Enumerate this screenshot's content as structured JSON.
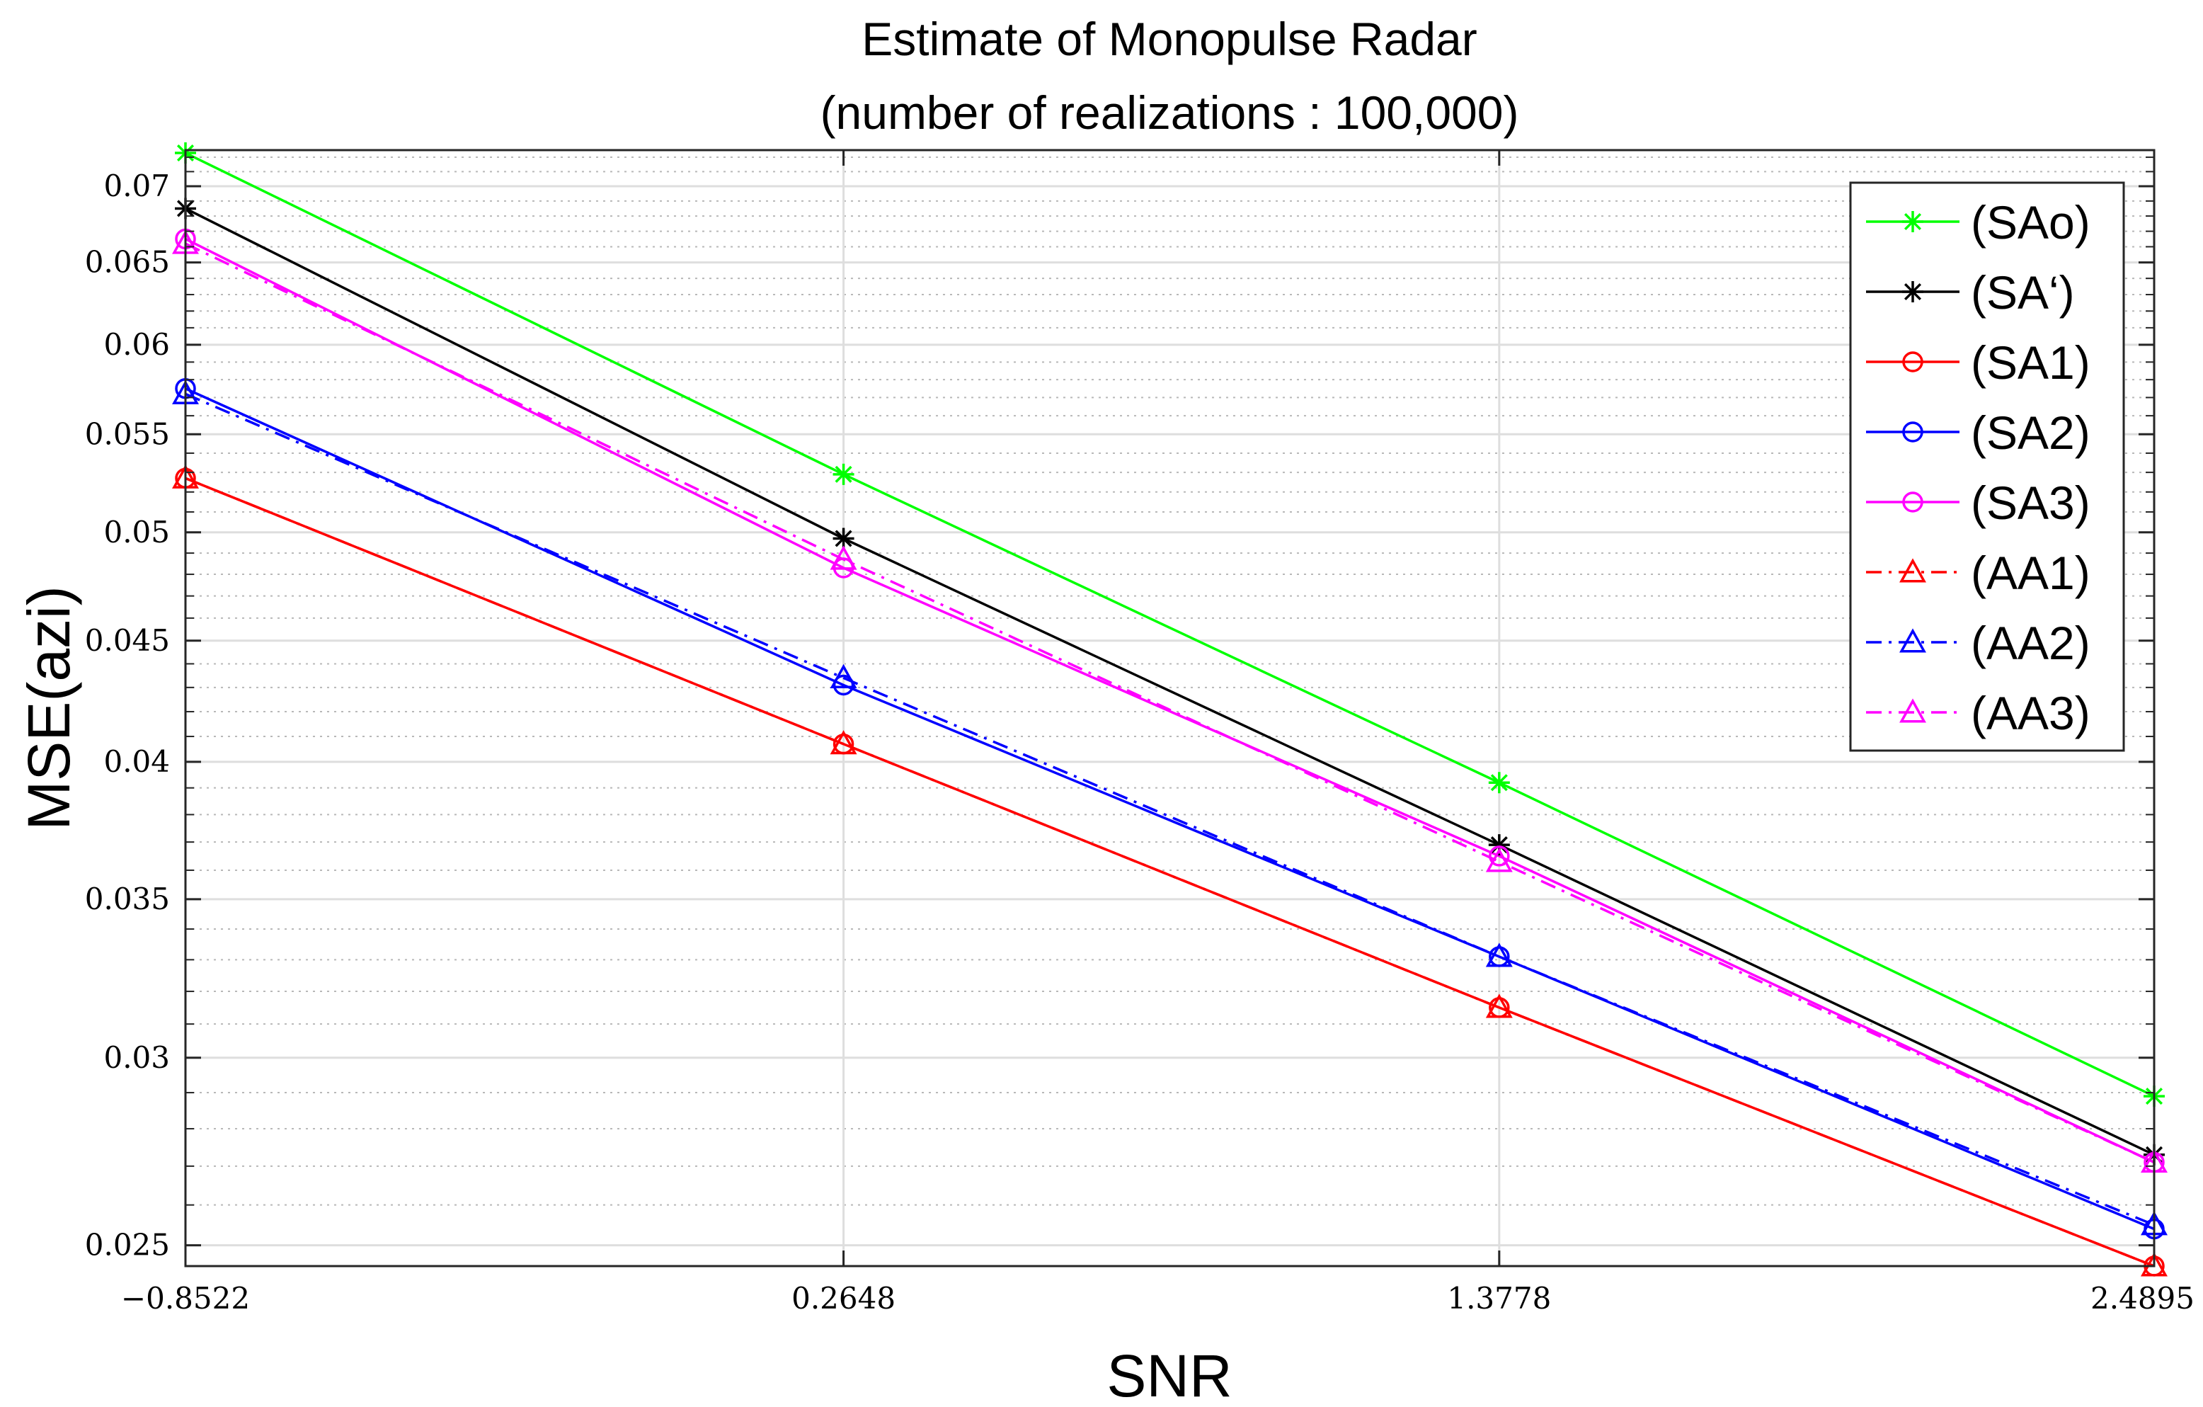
{
  "chart_data": {
    "type": "line",
    "title_line1": "Estimate of Monopulse Radar",
    "title_line2": "(number of realizations : 100,000)",
    "xlabel": "SNR",
    "ylabel": "MSE(azi)",
    "y_scale": "log",
    "xlim": [
      -0.8522,
      2.4895
    ],
    "ylim": [
      0.0245,
      0.0725
    ],
    "grid": true,
    "minor_grid": true,
    "legend_position": "top-right",
    "x": [
      -0.8522,
      0.2648,
      1.3778,
      2.4895
    ],
    "x_tick_labels": [
      "−0.8522",
      "0.2648",
      "1.3778",
      "2.4895"
    ],
    "y_ticks": [
      0.025,
      0.03,
      0.035,
      0.04,
      0.045,
      0.05,
      0.055,
      0.06,
      0.065,
      0.07
    ],
    "y_tick_labels": [
      "0.025",
      "0.03",
      "0.035",
      "0.04",
      "0.045",
      "0.05",
      "0.055",
      "0.06",
      "0.065",
      "0.07"
    ],
    "series": [
      {
        "name": "(SAo)",
        "color": "#00ff00",
        "marker": "star",
        "dash": "solid",
        "values": [
          0.0723,
          0.0529,
          0.0392,
          0.0289
        ]
      },
      {
        "name": "(SA‘)",
        "color": "#000000",
        "marker": "star",
        "dash": "solid",
        "values": [
          0.0685,
          0.0497,
          0.0369,
          0.0273
        ]
      },
      {
        "name": "(SA1)",
        "color": "#ff0000",
        "marker": "circle",
        "dash": "solid",
        "values": [
          0.0527,
          0.0407,
          0.0315,
          0.0245
        ]
      },
      {
        "name": "(SA2)",
        "color": "#0000ff",
        "marker": "circle",
        "dash": "solid",
        "values": [
          0.0575,
          0.0431,
          0.0331,
          0.0254
        ]
      },
      {
        "name": "(SA3)",
        "color": "#ff00ff",
        "marker": "circle",
        "dash": "solid",
        "values": [
          0.0665,
          0.0483,
          0.0365,
          0.0271
        ]
      },
      {
        "name": "(AA1)",
        "color": "#ff0000",
        "marker": "triangle",
        "dash": "dashdot",
        "values": [
          0.0527,
          0.0407,
          0.0315,
          0.0245
        ]
      },
      {
        "name": "(AA2)",
        "color": "#0000ff",
        "marker": "triangle",
        "dash": "dashdot",
        "values": [
          0.0572,
          0.0434,
          0.0331,
          0.0255
        ]
      },
      {
        "name": "(AA3)",
        "color": "#ff00ff",
        "marker": "triangle",
        "dash": "dashdot",
        "values": [
          0.0662,
          0.0487,
          0.0363,
          0.0271
        ]
      }
    ]
  }
}
